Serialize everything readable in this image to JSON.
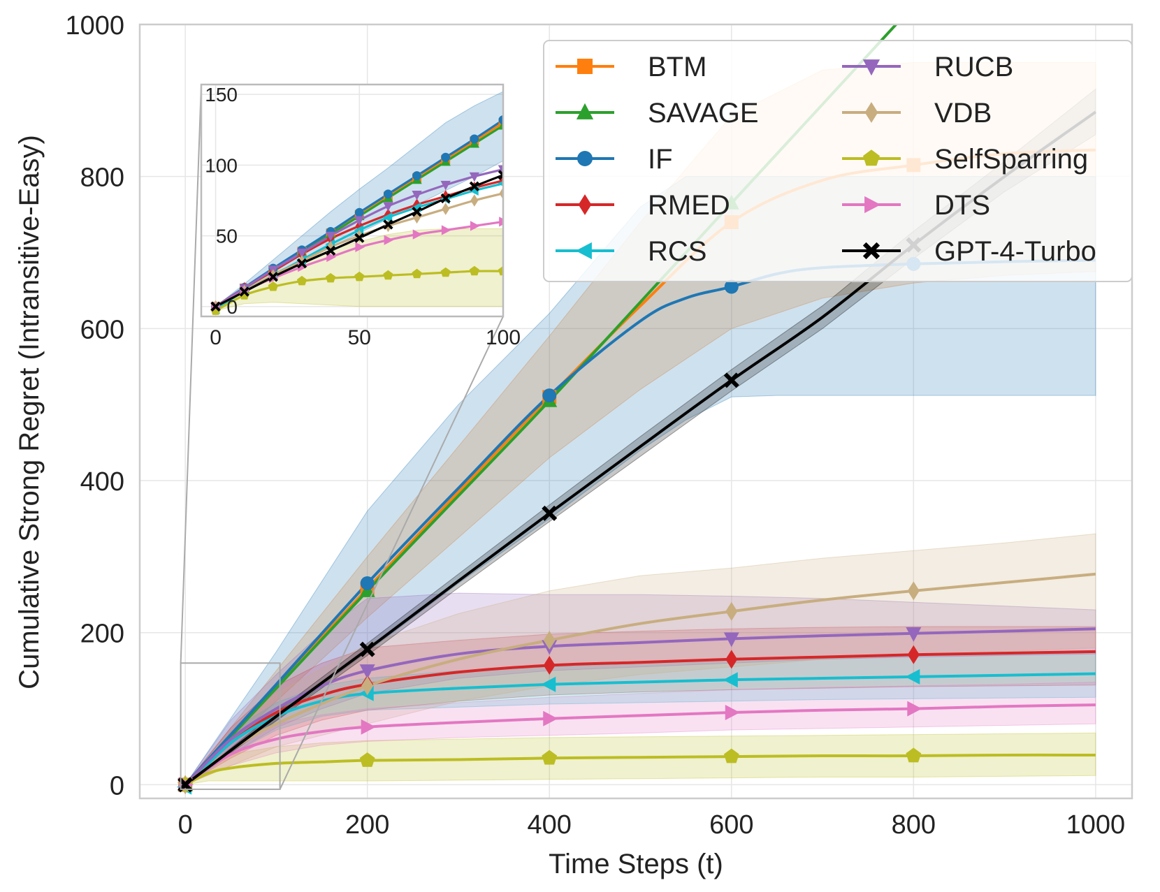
{
  "chart_data": {
    "type": "line",
    "title": "",
    "xlabel": "Time Steps (t)",
    "ylabel": "Cumulative Strong Regret (Intransitive-Easy)",
    "xlim": [
      -50,
      1040
    ],
    "ylim": [
      -18,
      1000
    ],
    "xticks": [
      "0",
      "200",
      "400",
      "600",
      "800",
      "1000"
    ],
    "yticks": [
      "0",
      "200",
      "400",
      "600",
      "800",
      "1000"
    ],
    "grid": true,
    "legend_position": "top-right",
    "legend_columns": 2,
    "inset": {
      "xlim": [
        -5,
        100
      ],
      "ylim": [
        -7,
        157
      ],
      "xticks": [
        "0",
        "50",
        "100"
      ],
      "yticks": [
        "0",
        "50",
        "100",
        "150"
      ],
      "source_region": {
        "x": [
          -5,
          104
        ],
        "y": [
          -6,
          160
        ]
      }
    },
    "series": [
      {
        "name": "BTM",
        "color": "#ff7f0e",
        "marker": "square",
        "x": [
          0,
          100,
          200,
          300,
          400,
          500,
          600,
          700,
          800,
          900,
          1000
        ],
        "y": [
          0,
          130,
          258,
          385,
          510,
          630,
          740,
          795,
          815,
          830,
          835
        ],
        "band": [
          [
            0,
            0
          ],
          [
            110,
            150
          ],
          [
            220,
            300
          ],
          [
            325,
            445
          ],
          [
            430,
            590
          ],
          [
            520,
            740
          ],
          [
            600,
            880
          ],
          [
            640,
            940
          ],
          [
            660,
            950
          ],
          [
            670,
            950
          ],
          [
            675,
            950
          ]
        ],
        "ix": [
          0,
          10,
          20,
          30,
          40,
          50,
          60,
          70,
          80,
          90,
          100
        ],
        "iy": [
          0,
          13,
          26,
          39,
          52,
          65,
          78,
          91,
          104,
          117,
          130
        ]
      },
      {
        "name": "SAVAGE",
        "color": "#2ca02c",
        "marker": "triangle-up",
        "x": [
          0,
          100,
          200,
          300,
          400,
          500,
          600,
          700,
          800
        ],
        "y": [
          0,
          127,
          255,
          380,
          505,
          635,
          765,
          895,
          1025
        ],
        "band": null,
        "ix": [
          0,
          10,
          20,
          30,
          40,
          50,
          60,
          70,
          80,
          90,
          100
        ],
        "iy": [
          0,
          12.8,
          25.6,
          38.4,
          51.2,
          64,
          76.8,
          89.6,
          102.4,
          115.2,
          128
        ]
      },
      {
        "name": "IF",
        "color": "#1f77b4",
        "marker": "circle",
        "x": [
          0,
          100,
          200,
          300,
          400,
          500,
          550,
          600,
          650,
          700,
          800,
          900,
          1000
        ],
        "y": [
          0,
          132,
          265,
          390,
          512,
          610,
          640,
          655,
          672,
          680,
          685,
          688,
          690
        ],
        "band": [
          [
            0,
            0
          ],
          [
            85,
            175
          ],
          [
            175,
            360
          ],
          [
            265,
            500
          ],
          [
            350,
            620
          ],
          [
            440,
            760
          ],
          [
            480,
            800
          ],
          [
            510,
            800
          ],
          [
            512,
            800
          ],
          [
            512,
            800
          ],
          [
            512,
            800
          ],
          [
            512,
            800
          ],
          [
            512,
            800
          ]
        ],
        "ix": [
          0,
          10,
          20,
          30,
          40,
          50,
          60,
          70,
          80,
          90,
          100
        ],
        "iy": [
          0,
          13.5,
          27,
          40,
          53,
          66.5,
          79.5,
          92.5,
          105.5,
          118.5,
          132
        ],
        "iband": [
          [
            0,
            0
          ],
          [
            11,
            16
          ],
          [
            22,
            33
          ],
          [
            32,
            50
          ],
          [
            42,
            67
          ],
          [
            52,
            83
          ],
          [
            62,
            98
          ],
          [
            72,
            114
          ],
          [
            82,
            130
          ],
          [
            92,
            142
          ],
          [
            103,
            152
          ]
        ]
      },
      {
        "name": "RMED",
        "color": "#d62728",
        "marker": "diamond",
        "x": [
          0,
          50,
          100,
          150,
          200,
          300,
          400,
          500,
          600,
          700,
          800,
          900,
          1000
        ],
        "y": [
          0,
          55,
          95,
          118,
          132,
          148,
          157,
          161,
          165,
          168,
          171,
          173,
          175
        ],
        "band": [
          [
            0,
            0
          ],
          [
            35,
            75
          ],
          [
            65,
            130
          ],
          [
            85,
            160
          ],
          [
            98,
            180
          ],
          [
            110,
            190
          ],
          [
            118,
            198
          ],
          [
            122,
            202
          ],
          [
            125,
            205
          ],
          [
            127,
            207
          ],
          [
            129,
            208
          ],
          [
            130,
            208
          ],
          [
            131,
            208
          ]
        ],
        "ix": [
          0,
          10,
          20,
          30,
          40,
          50,
          60,
          70,
          80,
          90,
          100
        ],
        "iy": [
          0,
          13,
          25,
          37,
          48,
          57,
          65,
          72,
          78,
          84,
          89
        ]
      },
      {
        "name": "RCS",
        "color": "#17becf",
        "marker": "triangle-left",
        "x": [
          0,
          50,
          100,
          150,
          200,
          300,
          400,
          500,
          600,
          700,
          800,
          900,
          1000
        ],
        "y": [
          -3,
          55,
          90,
          110,
          120,
          127,
          132,
          135,
          138,
          140,
          142,
          144,
          146
        ],
        "band": [
          [
            -3,
            -3
          ],
          [
            40,
            70
          ],
          [
            72,
            108
          ],
          [
            90,
            130
          ],
          [
            98,
            140
          ],
          [
            102,
            150
          ],
          [
            106,
            155
          ],
          [
            108,
            160
          ],
          [
            110,
            165
          ],
          [
            112,
            168
          ],
          [
            113,
            170
          ],
          [
            114,
            172
          ],
          [
            115,
            175
          ]
        ],
        "ix": [
          0,
          10,
          20,
          30,
          40,
          50,
          60,
          70,
          80,
          90,
          100
        ],
        "iy": [
          -2,
          11,
          22,
          33,
          44,
          54,
          63,
          70,
          76,
          82,
          87
        ]
      },
      {
        "name": "RUCB",
        "color": "#9467bd",
        "marker": "triangle-down",
        "x": [
          0,
          50,
          100,
          150,
          200,
          300,
          400,
          500,
          600,
          700,
          800,
          900,
          1000
        ],
        "y": [
          0,
          60,
          100,
          130,
          150,
          172,
          182,
          187,
          192,
          196,
          199,
          202,
          205
        ],
        "band": [
          [
            0,
            0
          ],
          [
            40,
            85
          ],
          [
            75,
            145
          ],
          [
            100,
            200
          ],
          [
            120,
            245
          ],
          [
            140,
            252
          ],
          [
            150,
            250
          ],
          [
            155,
            250
          ],
          [
            160,
            248
          ],
          [
            165,
            245
          ],
          [
            168,
            240
          ],
          [
            170,
            235
          ],
          [
            172,
            230
          ]
        ],
        "ix": [
          0,
          10,
          20,
          30,
          40,
          50,
          60,
          70,
          80,
          90,
          100
        ],
        "iy": [
          0,
          13,
          26,
          38,
          50,
          61,
          71,
          79,
          86,
          92,
          97
        ]
      },
      {
        "name": "VDB",
        "color": "#c8ad7f",
        "marker": "diamond",
        "x": [
          0,
          50,
          100,
          200,
          300,
          400,
          500,
          600,
          700,
          800,
          900,
          1000
        ],
        "y": [
          0,
          45,
          80,
          130,
          165,
          190,
          212,
          228,
          243,
          255,
          266,
          277
        ],
        "band": [
          [
            0,
            0
          ],
          [
            25,
            70
          ],
          [
            50,
            120
          ],
          [
            80,
            185
          ],
          [
            110,
            225
          ],
          [
            130,
            255
          ],
          [
            145,
            275
          ],
          [
            155,
            285
          ],
          [
            165,
            298
          ],
          [
            170,
            308
          ],
          [
            175,
            318
          ],
          [
            180,
            330
          ]
        ],
        "ix": [
          0,
          10,
          20,
          30,
          40,
          50,
          60,
          70,
          80,
          90,
          100
        ],
        "iy": [
          0,
          11,
          22,
          32,
          42,
          50,
          57,
          63,
          69,
          75,
          80
        ]
      },
      {
        "name": "SelfSparring",
        "color": "#bcbd22",
        "marker": "pentagon",
        "x": [
          0,
          25,
          50,
          100,
          150,
          200,
          300,
          400,
          500,
          600,
          700,
          800,
          900,
          1000
        ],
        "y": [
          0,
          15,
          22,
          28,
          30,
          32,
          33,
          35,
          36,
          37,
          38,
          38,
          39,
          39
        ],
        "band": [
          [
            0,
            0
          ],
          [
            5,
            30
          ],
          [
            5,
            40
          ],
          [
            5,
            50
          ],
          [
            5,
            55
          ],
          [
            5,
            58
          ],
          [
            6,
            60
          ],
          [
            7,
            62
          ],
          [
            8,
            63
          ],
          [
            9,
            64
          ],
          [
            10,
            65
          ],
          [
            10,
            66
          ],
          [
            11,
            67
          ],
          [
            12,
            68
          ]
        ],
        "ix": [
          0,
          10,
          20,
          30,
          40,
          50,
          60,
          70,
          80,
          90,
          100
        ],
        "iy": [
          -3,
          8,
          14,
          18,
          20,
          21,
          22,
          23,
          24,
          25,
          25
        ],
        "iband": [
          [
            -3,
            -3
          ],
          [
            2,
            14
          ],
          [
            3,
            24
          ],
          [
            2,
            32
          ],
          [
            1,
            40
          ],
          [
            0,
            46
          ],
          [
            0,
            51
          ],
          [
            0,
            54
          ],
          [
            0,
            55
          ],
          [
            0,
            55
          ],
          [
            0,
            55
          ]
        ]
      },
      {
        "name": "DTS",
        "color": "#e377c2",
        "marker": "triangle-right",
        "x": [
          0,
          50,
          100,
          150,
          200,
          300,
          400,
          500,
          600,
          700,
          800,
          900,
          1000
        ],
        "y": [
          0,
          40,
          60,
          70,
          76,
          82,
          87,
          91,
          95,
          98,
          100,
          103,
          105
        ],
        "band": [
          [
            0,
            0
          ],
          [
            25,
            55
          ],
          [
            42,
            80
          ],
          [
            52,
            92
          ],
          [
            57,
            100
          ],
          [
            62,
            108
          ],
          [
            65,
            115
          ],
          [
            68,
            120
          ],
          [
            72,
            125
          ],
          [
            74,
            128
          ],
          [
            76,
            130
          ],
          [
            78,
            132
          ],
          [
            80,
            135
          ]
        ],
        "ix": [
          0,
          10,
          20,
          30,
          40,
          50,
          60,
          70,
          80,
          90,
          100
        ],
        "iy": [
          0,
          11,
          20,
          28,
          35,
          42,
          47,
          51,
          54,
          57,
          60
        ]
      },
      {
        "name": "GPT-4-Turbo",
        "color": "#000000",
        "marker": "x-filled",
        "x": [
          0,
          100,
          200,
          300,
          400,
          500,
          600,
          700,
          800,
          900,
          1000
        ],
        "y": [
          0,
          90,
          178,
          268,
          357,
          445,
          532,
          615,
          710,
          800,
          885
        ],
        "band": [
          [
            0,
            0
          ],
          [
            84,
            96
          ],
          [
            170,
            186
          ],
          [
            259,
            277
          ],
          [
            346,
            368
          ],
          [
            432,
            458
          ],
          [
            518,
            546
          ],
          [
            600,
            630
          ],
          [
            692,
            728
          ],
          [
            780,
            820
          ],
          [
            855,
            915
          ]
        ],
        "ix": [
          0,
          10,
          20,
          30,
          40,
          50,
          60,
          70,
          80,
          90,
          100
        ],
        "iy": [
          0,
          10.5,
          21,
          30.5,
          39.5,
          48.5,
          58,
          67,
          76.5,
          85,
          93
        ]
      }
    ]
  }
}
